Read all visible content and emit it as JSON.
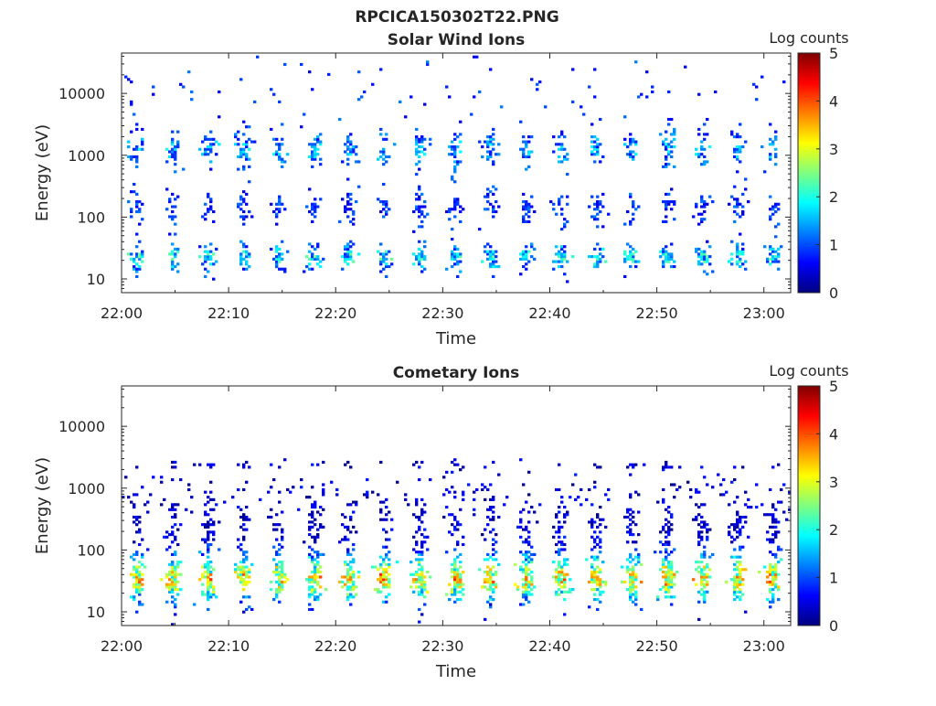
{
  "figure_title": "RPCICA150302T22.PNG",
  "colors": {
    "colormap": [
      "#00007f",
      "#0000ff",
      "#007fff",
      "#00ffff",
      "#7fff7f",
      "#ffff00",
      "#ff7f00",
      "#ff0000",
      "#7f0000"
    ],
    "axes": "#262626"
  },
  "chart_data": [
    {
      "type": "heatmap",
      "title": "Solar Wind Ions",
      "xlabel": "Time",
      "ylabel": "Energy (eV)",
      "yscale": "log",
      "ylim": [
        6,
        45000
      ],
      "xlim": [
        "22:00",
        "23:03"
      ],
      "x_ticks": [
        "22:00",
        "22:10",
        "22:20",
        "22:30",
        "22:40",
        "22:50",
        "23:00"
      ],
      "y_ticks": [
        10,
        100,
        1000,
        10000
      ],
      "y_tick_labels": [
        "10",
        "100",
        "1000",
        "10000"
      ],
      "colorbar": {
        "label": "Log counts",
        "range": [
          0,
          5
        ],
        "ticks": [
          "0",
          "1",
          "2",
          "3",
          "4",
          "5"
        ]
      },
      "sweep_period_min": 3.3,
      "peak_log_counts": 2.5
    },
    {
      "type": "heatmap",
      "title": "Cometary Ions",
      "xlabel": "Time",
      "ylabel": "Energy (eV)",
      "yscale": "log",
      "ylim": [
        6,
        45000
      ],
      "xlim": [
        "22:00",
        "23:03"
      ],
      "x_ticks": [
        "22:00",
        "22:10",
        "22:20",
        "22:30",
        "22:40",
        "22:50",
        "23:00"
      ],
      "y_ticks": [
        10,
        100,
        1000,
        10000
      ],
      "y_tick_labels": [
        "10",
        "100",
        "1000",
        "10000"
      ],
      "colorbar": {
        "label": "Log counts",
        "range": [
          0,
          5
        ],
        "ticks": [
          "0",
          "1",
          "2",
          "3",
          "4",
          "5"
        ]
      },
      "sweep_period_min": 3.3,
      "peak_log_counts": 3.6
    }
  ]
}
